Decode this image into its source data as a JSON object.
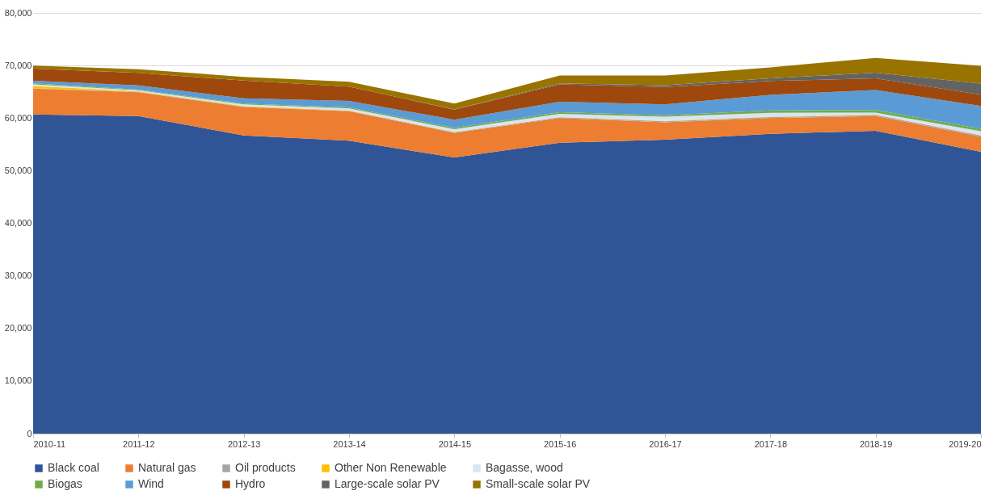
{
  "chart_data": {
    "type": "area",
    "stacked": true,
    "grid": "y",
    "legend": "bottom",
    "categories": [
      "2010-11",
      "2011-12",
      "2012-13",
      "2013-14",
      "2014-15",
      "2015-16",
      "2016-17",
      "2017-18",
      "2018-19",
      "2019-20"
    ],
    "ylim": [
      0,
      80000
    ],
    "yticks": [
      {
        "value": 0,
        "label": "0"
      },
      {
        "value": 10000,
        "label": "10,000"
      },
      {
        "value": 20000,
        "label": "20,000"
      },
      {
        "value": 30000,
        "label": "30,000"
      },
      {
        "value": 40000,
        "label": "40,000"
      },
      {
        "value": 50000,
        "label": "50,000"
      },
      {
        "value": 60000,
        "label": "60,000"
      },
      {
        "value": 70000,
        "label": "70,000"
      },
      {
        "value": 80000,
        "label": "80,000"
      }
    ],
    "series": [
      {
        "name": "Black coal",
        "color": "#2f5597",
        "values": [
          60700,
          60400,
          56700,
          55700,
          52500,
          55300,
          55900,
          57000,
          57600,
          53600
        ]
      },
      {
        "name": "Natural gas",
        "color": "#ed7d31",
        "values": [
          4900,
          4500,
          5400,
          5600,
          4700,
          4700,
          3300,
          3000,
          2800,
          2850
        ]
      },
      {
        "name": "Oil products",
        "color": "#a5a5a5",
        "values": [
          100,
          100,
          100,
          100,
          100,
          150,
          200,
          200,
          200,
          250
        ]
      },
      {
        "name": "Other Non Renewable",
        "color": "#ffc000",
        "values": [
          400,
          100,
          100,
          50,
          50,
          50,
          50,
          50,
          50,
          50
        ]
      },
      {
        "name": "Bagasse, wood",
        "color": "#dae3f3",
        "values": [
          300,
          200,
          300,
          400,
          550,
          600,
          800,
          750,
          400,
          750
        ]
      },
      {
        "name": "Biogas",
        "color": "#70ad47",
        "values": [
          200,
          100,
          150,
          200,
          250,
          300,
          300,
          450,
          500,
          450
        ]
      },
      {
        "name": "Wind",
        "color": "#5b9bd5",
        "values": [
          500,
          800,
          1000,
          1200,
          1550,
          2000,
          2050,
          2950,
          3800,
          4350
        ]
      },
      {
        "name": "Hydro",
        "color": "#9e480e",
        "values": [
          2300,
          2400,
          3400,
          2750,
          1900,
          3300,
          3300,
          2650,
          2200,
          2150
        ]
      },
      {
        "name": "Large-scale solar PV",
        "color": "#636363",
        "values": [
          0,
          0,
          0,
          0,
          50,
          200,
          350,
          500,
          1100,
          2100
        ]
      },
      {
        "name": "Small-scale solar PV",
        "color": "#997300",
        "values": [
          600,
          700,
          700,
          900,
          1100,
          1500,
          1850,
          2100,
          2800,
          3400
        ]
      }
    ]
  }
}
